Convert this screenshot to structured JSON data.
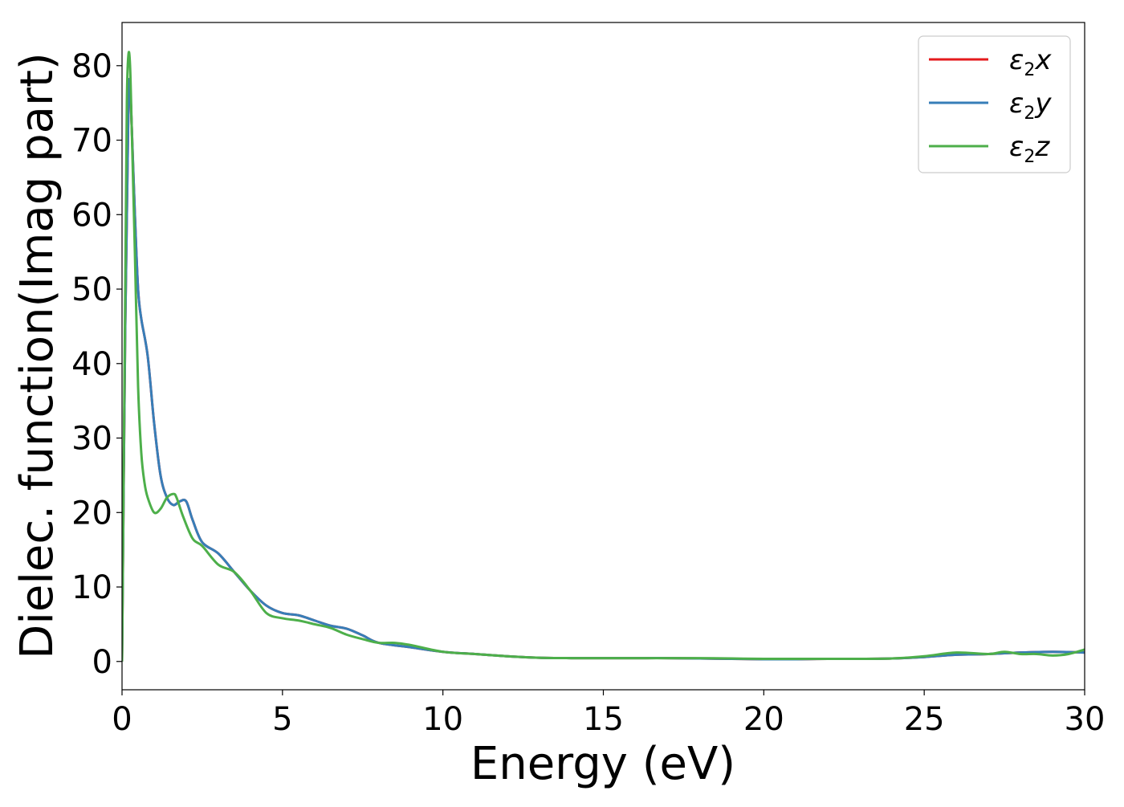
{
  "chart_data": {
    "type": "line",
    "title": "",
    "xlabel": "Energy (eV)",
    "ylabel": "Dielec. function(Imag part)",
    "xlim": [
      0,
      30
    ],
    "ylim": [
      -3.8,
      85.8
    ],
    "xticks": [
      0,
      5,
      10,
      15,
      20,
      25,
      30
    ],
    "yticks": [
      0,
      10,
      20,
      30,
      40,
      50,
      60,
      70,
      80
    ],
    "grid": false,
    "legend_position": "top-right",
    "series": [
      {
        "name": "ε2x",
        "legend": {
          "base": "ε",
          "sub": "2",
          "suffix": "x"
        },
        "color": "#e41a1c",
        "x": [
          0,
          0.1,
          0.2,
          0.25,
          0.3,
          0.4,
          0.5,
          0.6,
          0.8,
          1.0,
          1.2,
          1.4,
          1.6,
          1.8,
          2.0,
          2.2,
          2.5,
          3.0,
          3.5,
          4.0,
          4.5,
          5.0,
          5.5,
          6.0,
          6.5,
          7.0,
          7.5,
          8.0,
          9.0,
          10.0,
          11.0,
          12.0,
          13.0,
          14.0,
          15.0,
          16.0,
          17.0,
          18.0,
          19.0,
          20.0,
          21.0,
          22.0,
          23.0,
          24.0,
          25.0,
          26.0,
          27.0,
          28.0,
          29.0,
          30.0
        ],
        "values": [
          0,
          45,
          75,
          77,
          72,
          60,
          50,
          46,
          41,
          32,
          25,
          22,
          21,
          21.5,
          21.5,
          19,
          16,
          14.5,
          12,
          9.5,
          7.5,
          6.5,
          6.2,
          5.5,
          4.8,
          4.4,
          3.5,
          2.5,
          1.9,
          1.3,
          1.0,
          0.7,
          0.5,
          0.45,
          0.45,
          0.45,
          0.45,
          0.4,
          0.35,
          0.3,
          0.3,
          0.35,
          0.35,
          0.4,
          0.6,
          0.9,
          1.0,
          1.2,
          1.3,
          1.2
        ]
      },
      {
        "name": "ε2y",
        "legend": {
          "base": "ε",
          "sub": "2",
          "suffix": "y"
        },
        "color": "#377eb8",
        "x": [
          0,
          0.1,
          0.2,
          0.25,
          0.3,
          0.4,
          0.5,
          0.6,
          0.8,
          1.0,
          1.2,
          1.4,
          1.6,
          1.8,
          2.0,
          2.2,
          2.5,
          3.0,
          3.5,
          4.0,
          4.5,
          5.0,
          5.5,
          6.0,
          6.5,
          7.0,
          7.5,
          8.0,
          9.0,
          10.0,
          11.0,
          12.0,
          13.0,
          14.0,
          15.0,
          16.0,
          17.0,
          18.0,
          19.0,
          20.0,
          21.0,
          22.0,
          23.0,
          24.0,
          25.0,
          26.0,
          27.0,
          28.0,
          29.0,
          30.0
        ],
        "values": [
          0,
          45,
          75,
          77,
          72,
          60,
          50,
          46,
          41,
          32,
          25,
          22,
          21,
          21.5,
          21.5,
          19,
          16,
          14.5,
          12,
          9.5,
          7.5,
          6.5,
          6.2,
          5.5,
          4.8,
          4.4,
          3.5,
          2.5,
          1.9,
          1.3,
          1.0,
          0.7,
          0.5,
          0.45,
          0.45,
          0.45,
          0.45,
          0.4,
          0.35,
          0.3,
          0.3,
          0.35,
          0.35,
          0.4,
          0.6,
          0.9,
          1.0,
          1.2,
          1.3,
          1.2
        ]
      },
      {
        "name": "ε2z",
        "legend": {
          "base": "ε",
          "sub": "2",
          "suffix": "z"
        },
        "color": "#4daf4a",
        "x": [
          0,
          0.1,
          0.15,
          0.2,
          0.25,
          0.3,
          0.4,
          0.5,
          0.6,
          0.7,
          0.8,
          1.0,
          1.2,
          1.4,
          1.6,
          1.7,
          1.9,
          2.2,
          2.5,
          3.0,
          3.5,
          4.0,
          4.5,
          5.0,
          5.5,
          6.0,
          6.5,
          7.0,
          7.5,
          8.0,
          8.5,
          9.0,
          10.0,
          11.0,
          12.0,
          13.0,
          14.0,
          15.0,
          16.0,
          17.0,
          18.0,
          19.0,
          20.0,
          21.0,
          22.0,
          23.0,
          24.0,
          25.0,
          26.0,
          27.0,
          27.5,
          28.0,
          28.5,
          29.0,
          29.5,
          30.0
        ],
        "values": [
          0,
          50,
          75,
          81.5,
          80,
          72,
          55,
          37,
          28,
          24,
          22,
          20,
          20.5,
          22,
          22.5,
          22,
          19.5,
          16.5,
          15.5,
          13,
          12,
          9.5,
          6.5,
          5.8,
          5.5,
          5.0,
          4.5,
          3.6,
          3.0,
          2.5,
          2.5,
          2.2,
          1.3,
          1.0,
          0.7,
          0.5,
          0.45,
          0.45,
          0.45,
          0.45,
          0.45,
          0.4,
          0.35,
          0.35,
          0.35,
          0.35,
          0.4,
          0.7,
          1.2,
          1.0,
          1.3,
          1.0,
          1.0,
          0.8,
          1.0,
          1.6
        ]
      }
    ]
  }
}
